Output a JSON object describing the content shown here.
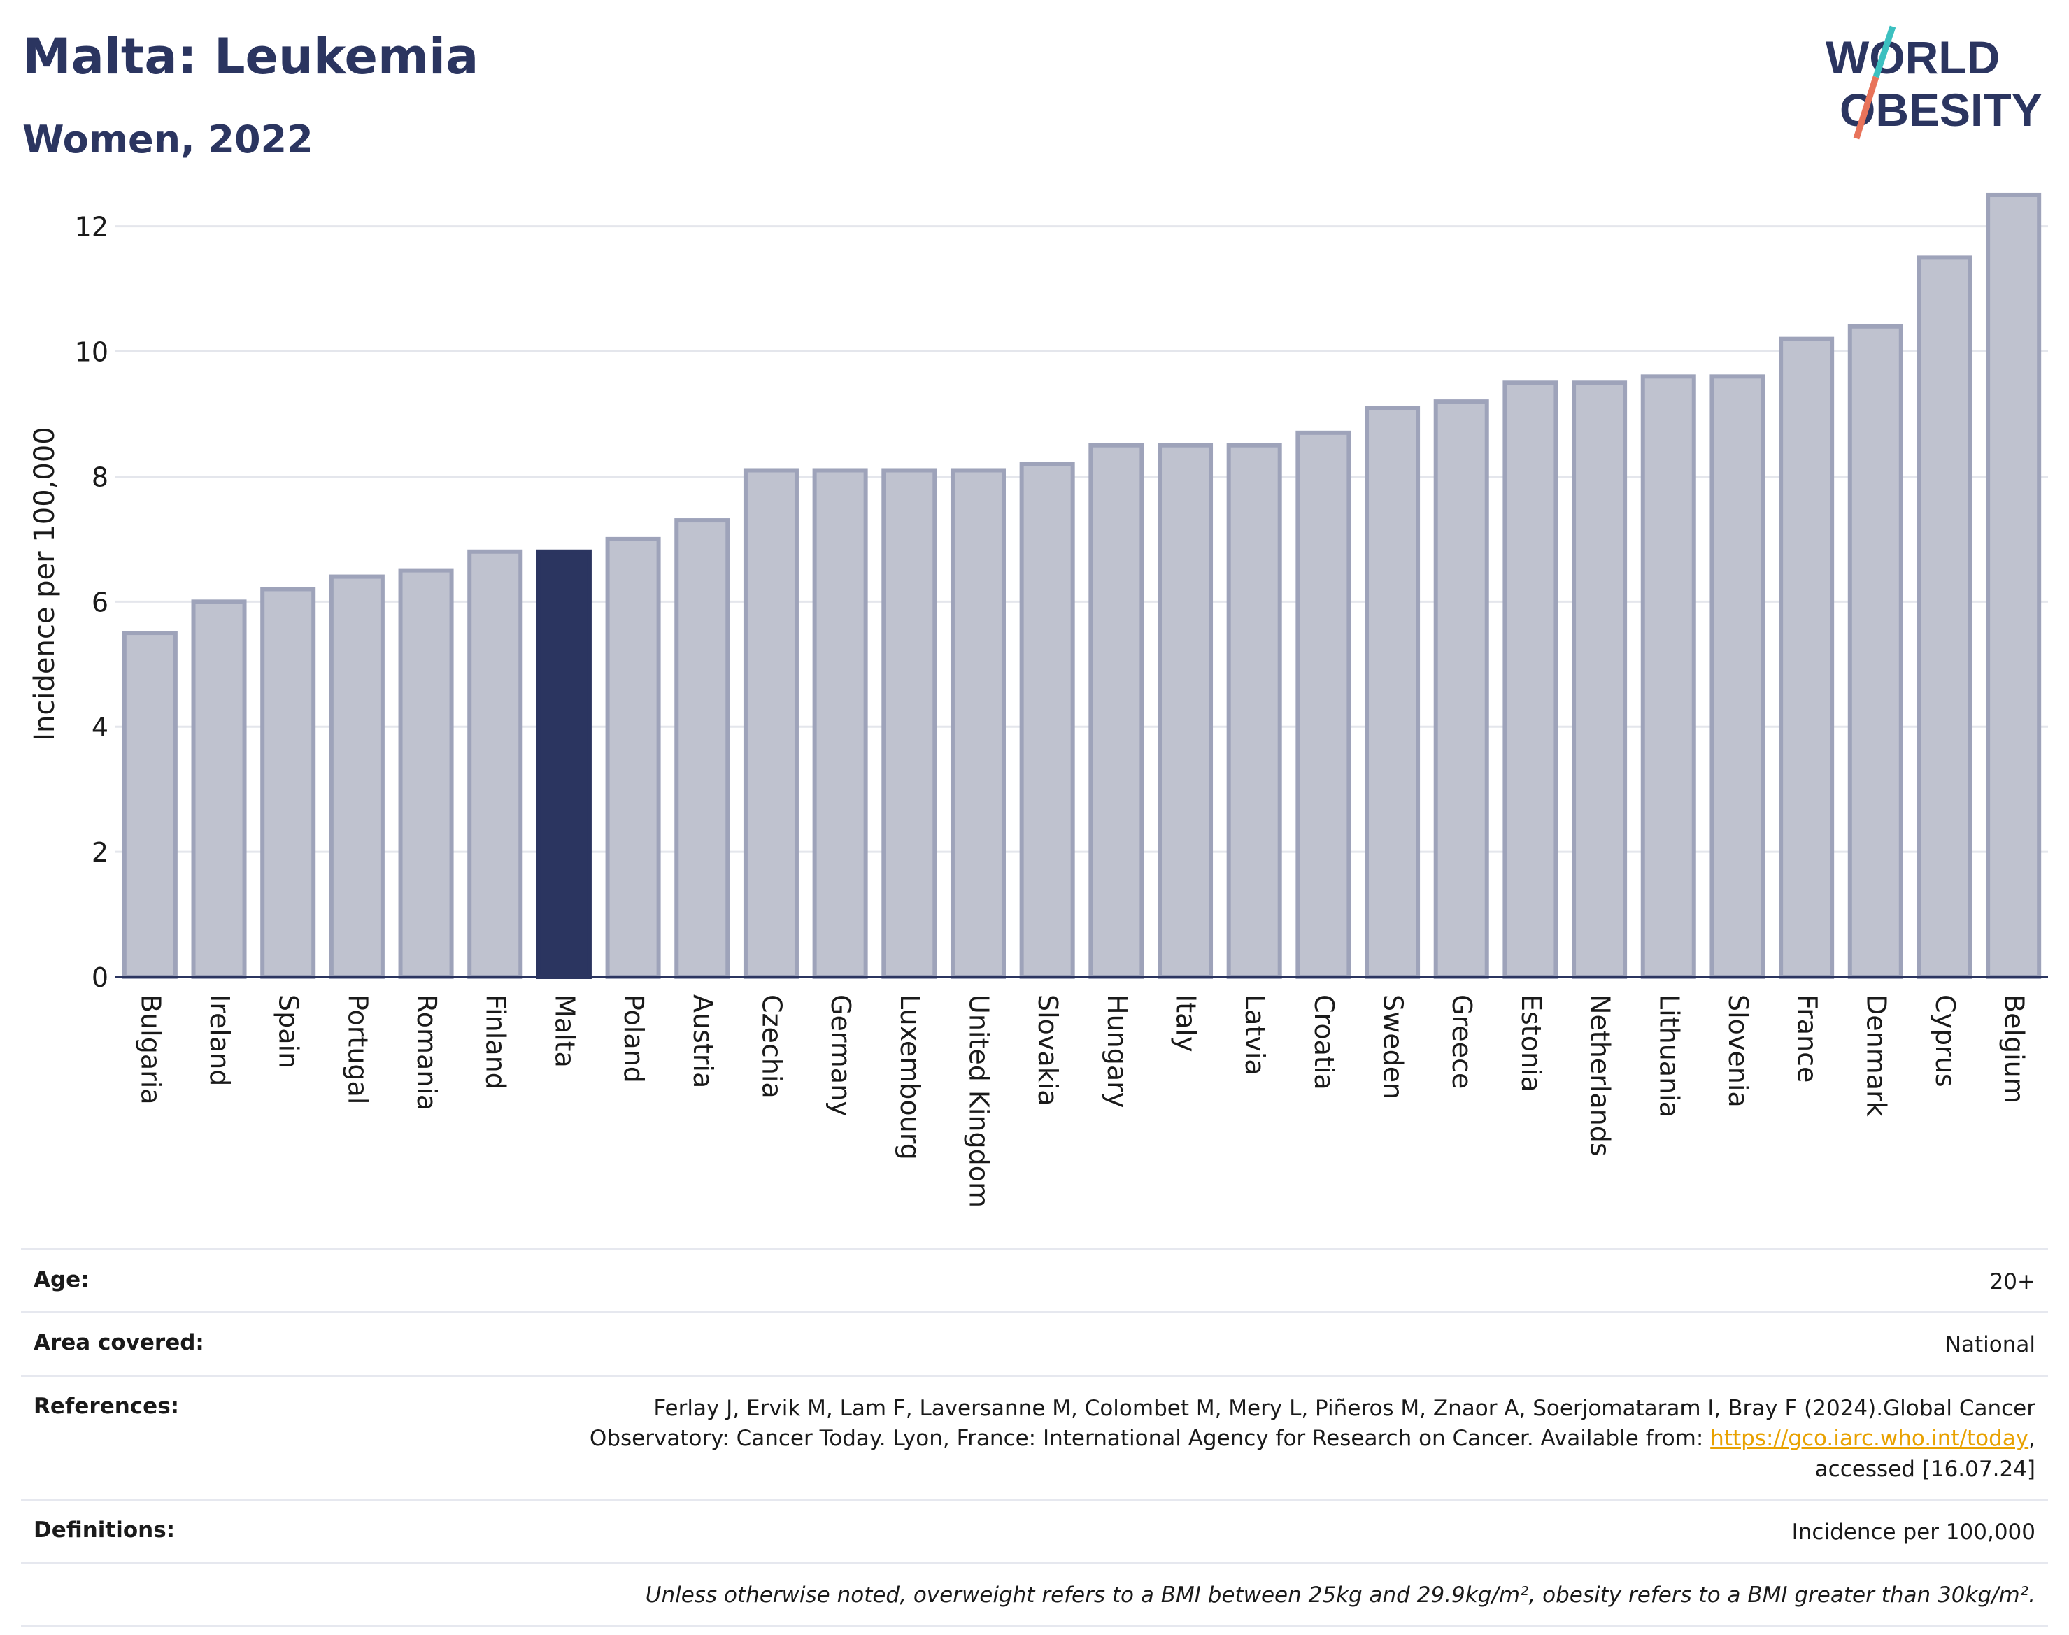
{
  "header": {
    "title": "Malta: Leukemia",
    "subtitle": "Women, 2022"
  },
  "logo": {
    "line1": "WORLD",
    "line2": "OBESITY",
    "text_color": "#2b3560",
    "slash_colors": [
      "#3cc0c0",
      "#e8735a"
    ]
  },
  "chart_data": {
    "type": "bar",
    "title": "Malta: Leukemia",
    "subtitle": "Women, 2022",
    "xlabel": "",
    "ylabel": "Incidence per 100,000",
    "ylim": [
      0,
      12.6
    ],
    "yticks": [
      0,
      2,
      4,
      6,
      8,
      10,
      12
    ],
    "grid": true,
    "highlight": "Malta",
    "colors": {
      "bar": "#bfc2cf",
      "bar_border": "#9ea3ba",
      "highlight": "#2b3560",
      "grid": "#e4e6ec",
      "axis": "#2b3560"
    },
    "categories": [
      "Bulgaria",
      "Ireland",
      "Spain",
      "Portugal",
      "Romania",
      "Finland",
      "Malta",
      "Poland",
      "Austria",
      "Czechia",
      "Germany",
      "Luxembourg",
      "United Kingdom",
      "Slovakia",
      "Hungary",
      "Italy",
      "Latvia",
      "Croatia",
      "Sweden",
      "Greece",
      "Estonia",
      "Netherlands",
      "Lithuania",
      "Slovenia",
      "France",
      "Denmark",
      "Cyprus",
      "Belgium"
    ],
    "values": [
      5.5,
      6.0,
      6.2,
      6.4,
      6.5,
      6.8,
      6.8,
      7.0,
      7.3,
      8.1,
      8.1,
      8.1,
      8.1,
      8.2,
      8.5,
      8.5,
      8.5,
      8.7,
      9.1,
      9.2,
      9.5,
      9.5,
      9.6,
      9.6,
      10.2,
      10.4,
      11.5,
      12.5
    ]
  },
  "meta": {
    "age_label": "Age:",
    "age_value": "20+",
    "area_label": "Area covered:",
    "area_value": "National",
    "references_label": "References:",
    "references_text_1": "Ferlay J, Ervik M, Lam F, Laversanne M, Colombet M, Mery L, Piñeros M, Znaor A, Soerjomataram I, Bray F (2024).Global Cancer Observatory: Cancer Today. Lyon, France: International Agency for Research on Cancer. Available from: ",
    "references_link": "https://gco.iarc.who.int/today",
    "references_text_2": ", accessed [16.07.24]",
    "definitions_label": "Definitions:",
    "definitions_value": "Incidence per 100,000",
    "note": "Unless otherwise noted, overweight refers to a BMI between 25kg and 29.9kg/m², obesity refers to a BMI greater than 30kg/m²."
  }
}
